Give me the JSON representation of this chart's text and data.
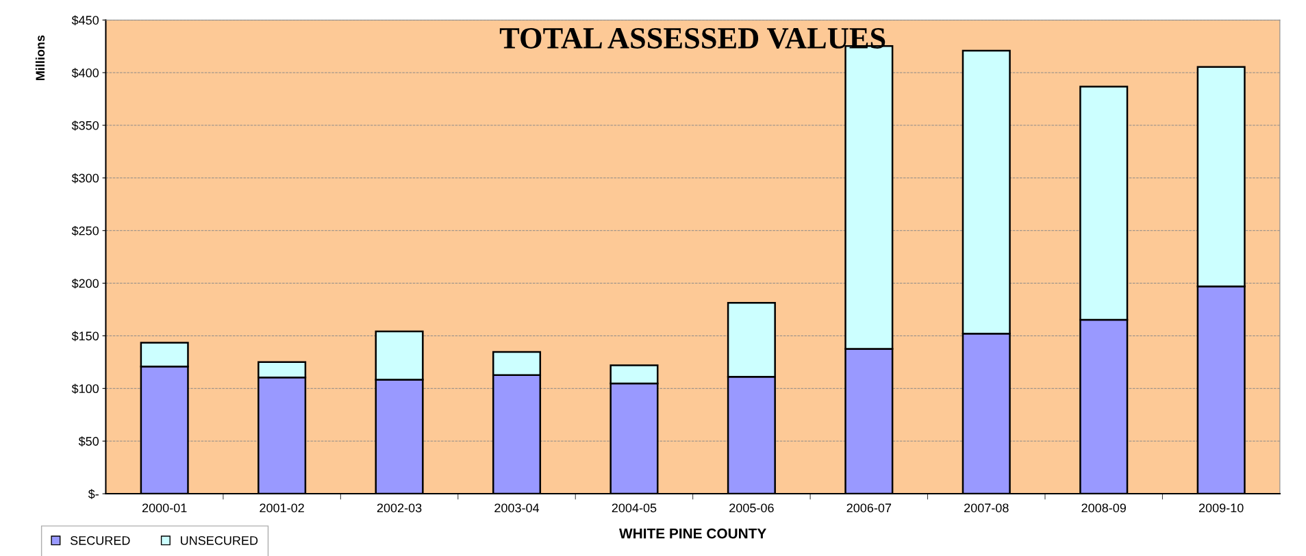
{
  "chart_data": {
    "type": "bar",
    "title": "TOTAL ASSESSED VALUES",
    "xlabel": "WHITE PINE COUNTY",
    "ylabel": "Millions",
    "categories": [
      "2000-01",
      "2001-02",
      "2002-03",
      "2003-04",
      "2004-05",
      "2005-06",
      "2006-07",
      "2007-08",
      "2008-09",
      "2009-10"
    ],
    "stacked": true,
    "series": [
      {
        "name": "SECURED",
        "color": "#9999ff",
        "values": [
          120.8,
          110.4,
          108.4,
          112.8,
          104.8,
          111.1,
          137.6,
          152.0,
          165.3,
          197.0
        ]
      },
      {
        "name": "UNSECURED",
        "color": "#ccffff",
        "values": [
          22.7,
          14.7,
          45.8,
          21.9,
          17.2,
          70.2,
          287.6,
          268.8,
          221.4,
          208.5
        ]
      }
    ],
    "ylim": [
      0,
      450
    ],
    "yticks": [
      {
        "value": 0,
        "label": "$-"
      },
      {
        "value": 50,
        "label": "$50"
      },
      {
        "value": 100,
        "label": "$100"
      },
      {
        "value": 150,
        "label": "$150"
      },
      {
        "value": 200,
        "label": "$200"
      },
      {
        "value": 250,
        "label": "$250"
      },
      {
        "value": 300,
        "label": "$300"
      },
      {
        "value": 350,
        "label": "$350"
      },
      {
        "value": 400,
        "label": "$400"
      },
      {
        "value": 450,
        "label": "$450"
      }
    ],
    "grid": "y",
    "legend": "bottom left"
  }
}
